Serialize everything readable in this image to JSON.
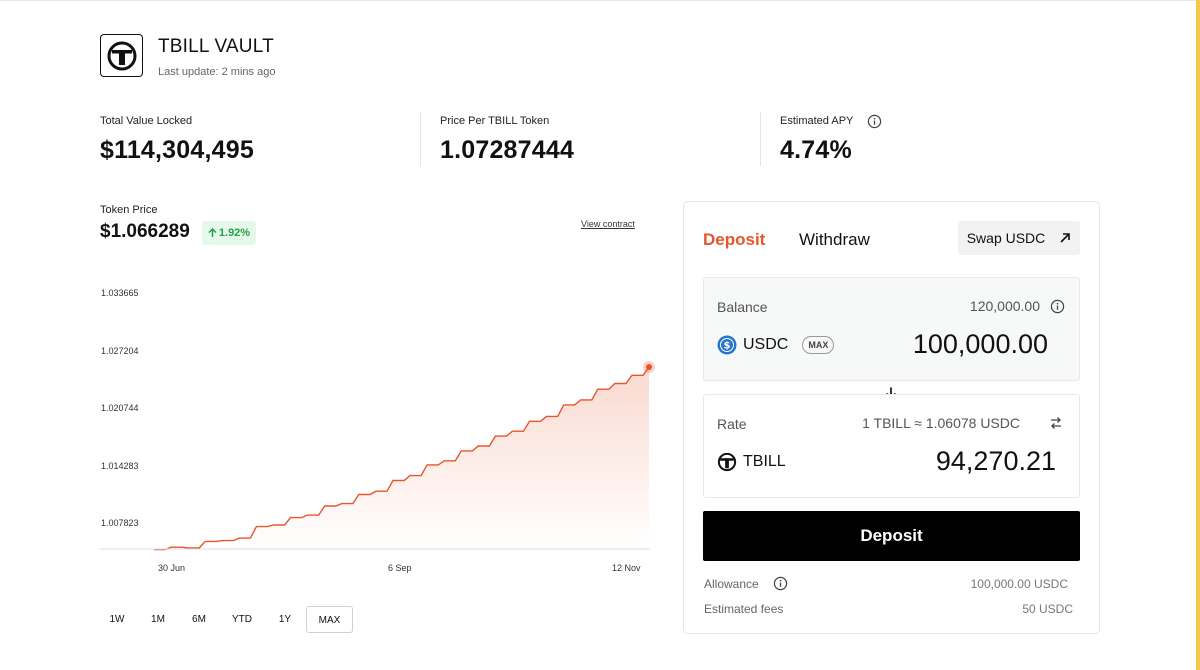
{
  "header": {
    "title": "TBILL VAULT",
    "last_update_label": "Last update:",
    "last_update_value": "2 mins ago"
  },
  "stats": [
    {
      "label": "Total Value Locked",
      "value": "$114,304,495"
    },
    {
      "label": "Price Per TBILL Token",
      "value": "1.07287444"
    },
    {
      "label": "Estimated APY",
      "value": "4.74%"
    }
  ],
  "token_price": {
    "label": "Token Price",
    "value": "$1.066289",
    "change": "1.92%",
    "view_contract": "View contract"
  },
  "chart_data": {
    "type": "line",
    "y_ticks": [
      "1.033665",
      "1.027204",
      "1.020744",
      "1.014283",
      "1.007823"
    ],
    "x_ticks": [
      "30 Jun",
      "6 Sep",
      "12 Nov"
    ],
    "ylim": [
      1.0052,
      1.0362
    ],
    "series": [
      {
        "values": [
          1.005,
          1.0053,
          1.0052,
          1.006,
          1.0061,
          1.0064,
          1.0078,
          1.008,
          1.0089,
          1.0092,
          1.0103,
          1.0106,
          1.0117,
          1.0121,
          1.0134,
          1.014,
          1.0153,
          1.0158,
          1.017,
          1.0176,
          1.0188,
          1.0194,
          1.0206,
          1.0212,
          1.0226,
          1.0232,
          1.0245,
          1.0252,
          1.0262,
          1.0272
        ]
      }
    ],
    "line_color": "#e8552b",
    "grid": false,
    "ranges": [
      "1W",
      "1M",
      "6M",
      "YTD",
      "1Y",
      "MAX"
    ],
    "active_range": "MAX"
  },
  "panel": {
    "tabs": [
      "Deposit",
      "Withdraw"
    ],
    "active_tab": "Deposit",
    "swap_label": "Swap USDC",
    "input": {
      "balance_label": "Balance",
      "balance_value": "120,000.00",
      "token": "USDC",
      "max_label": "MAX",
      "amount": "100,000.00"
    },
    "output": {
      "rate_label": "Rate",
      "rate_value": "1 TBILL ≈ 1.06078 USDC",
      "token": "TBILL",
      "amount": "94,270.21"
    },
    "deposit_button": "Deposit",
    "allowance_label": "Allowance",
    "allowance_value": "100,000.00 USDC",
    "fees_label": "Estimated fees",
    "fees_value": "50 USDC"
  },
  "colors": {
    "accent": "#e8552b",
    "positive": "#23a14a",
    "usdc": "#2775ca"
  }
}
